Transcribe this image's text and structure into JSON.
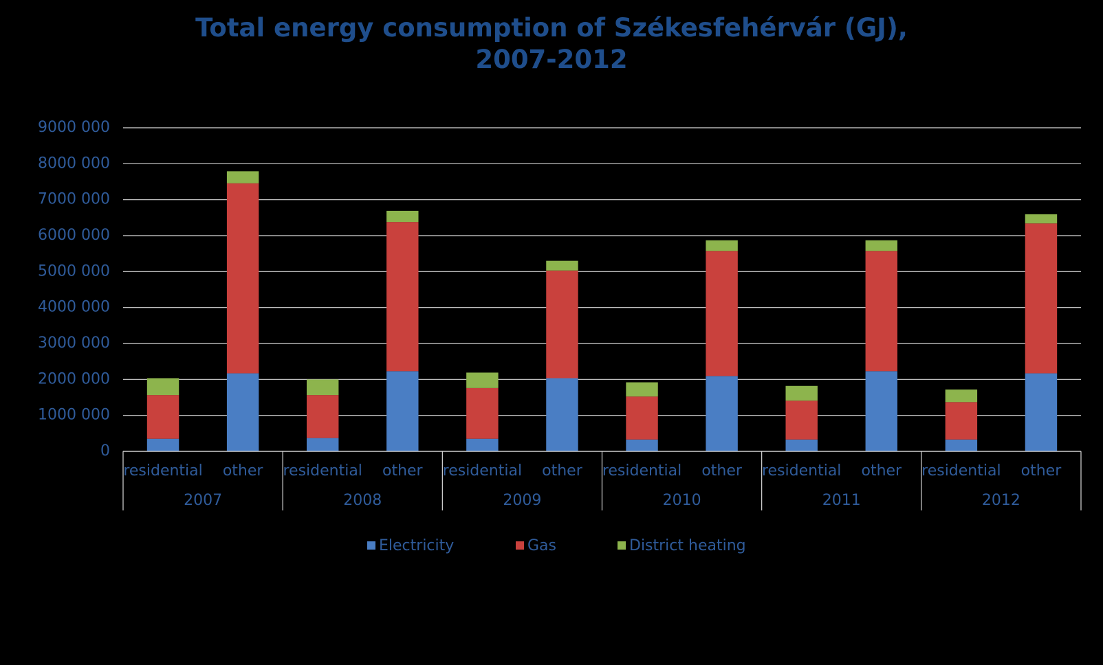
{
  "chart_data": {
    "type": "stacked_bar",
    "title": "Total energy consumption of Székesfehérvár (GJ),\n2007-2012",
    "categories": [
      "residential",
      "other",
      "residential",
      "other",
      "residential",
      "other",
      "residential",
      "other",
      "residential",
      "other",
      "residential",
      "other"
    ],
    "groups": [
      "2007",
      "2008",
      "2009",
      "2010",
      "2011",
      "2012"
    ],
    "series": [
      {
        "name": "Electricity",
        "color": "#4a7ec4",
        "values": [
          350000,
          2170000,
          370000,
          2230000,
          350000,
          2035000,
          330000,
          2095000,
          330000,
          2230000,
          330000,
          2170000
        ]
      },
      {
        "name": "Gas",
        "color": "#c9413d",
        "values": [
          1215000,
          5285000,
          1195000,
          4150000,
          1410000,
          2995000,
          1195000,
          3480000,
          1080000,
          3345000,
          1040000,
          4170000
        ]
      },
      {
        "name": "District heating",
        "color": "#8db44d",
        "values": [
          470000,
          335000,
          435000,
          310000,
          430000,
          270000,
          395000,
          295000,
          410000,
          295000,
          350000,
          255000
        ]
      }
    ],
    "ylim": [
      0,
      9000000
    ],
    "yticks": [
      0,
      {
        "value": 1000000,
        "label": "1000 000"
      },
      {
        "value": 2000000,
        "label": "2000 000"
      },
      {
        "value": 3000000,
        "label": "3000 000"
      },
      {
        "value": 4000000,
        "label": "4000 000"
      },
      {
        "value": 5000000,
        "label": "5000 000"
      },
      {
        "value": 6000000,
        "label": "6000 000"
      },
      {
        "value": 7000000,
        "label": "7000 000"
      },
      {
        "value": 8000000,
        "label": "8000 000"
      },
      {
        "value": 9000000,
        "label": "9000 000"
      }
    ],
    "grid": true,
    "legend": "bottom"
  }
}
